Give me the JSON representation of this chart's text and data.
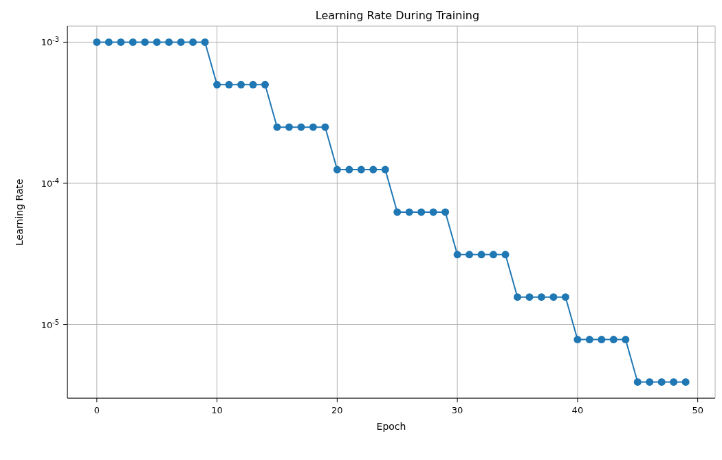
{
  "chart_data": {
    "type": "line",
    "title": "Learning Rate During Training",
    "xlabel": "Epoch",
    "ylabel": "Learning Rate",
    "x": [
      0,
      1,
      2,
      3,
      4,
      5,
      6,
      7,
      8,
      9,
      10,
      11,
      12,
      13,
      14,
      15,
      16,
      17,
      18,
      19,
      20,
      21,
      22,
      23,
      24,
      25,
      26,
      27,
      28,
      29,
      30,
      31,
      32,
      33,
      34,
      35,
      36,
      37,
      38,
      39,
      40,
      41,
      42,
      43,
      44,
      45,
      46,
      47,
      48,
      49
    ],
    "series": [
      {
        "color": "#1f77b4",
        "values": [
          0.001,
          0.001,
          0.001,
          0.001,
          0.001,
          0.001,
          0.001,
          0.001,
          0.001,
          0.001,
          0.0005,
          0.0005,
          0.0005,
          0.0005,
          0.0005,
          0.00025,
          0.00025,
          0.00025,
          0.00025,
          0.00025,
          0.000125,
          0.000125,
          0.000125,
          0.000125,
          0.000125,
          6.25e-05,
          6.25e-05,
          6.25e-05,
          6.25e-05,
          6.25e-05,
          3.125e-05,
          3.125e-05,
          3.125e-05,
          3.125e-05,
          3.125e-05,
          1.5625e-05,
          1.5625e-05,
          1.5625e-05,
          1.5625e-05,
          1.5625e-05,
          7.8125e-06,
          7.8125e-06,
          7.8125e-06,
          7.8125e-06,
          7.8125e-06,
          3.90625e-06,
          3.90625e-06,
          3.90625e-06,
          3.90625e-06,
          3.90625e-06
        ]
      }
    ],
    "xlim": [
      -2.45,
      51.45
    ],
    "xticks": [
      0,
      10,
      20,
      30,
      40,
      50
    ],
    "ylim": [
      3e-06,
      0.0013
    ],
    "yticks": [
      {
        "value": 1e-05,
        "label": "10$^{-5}$"
      },
      {
        "value": 0.0001,
        "label": "10$^{-4}$"
      },
      {
        "value": 0.001,
        "label": "10$^{-3}$"
      }
    ],
    "log": "y",
    "grid": true,
    "marker": "circle",
    "line_style": "solid"
  }
}
